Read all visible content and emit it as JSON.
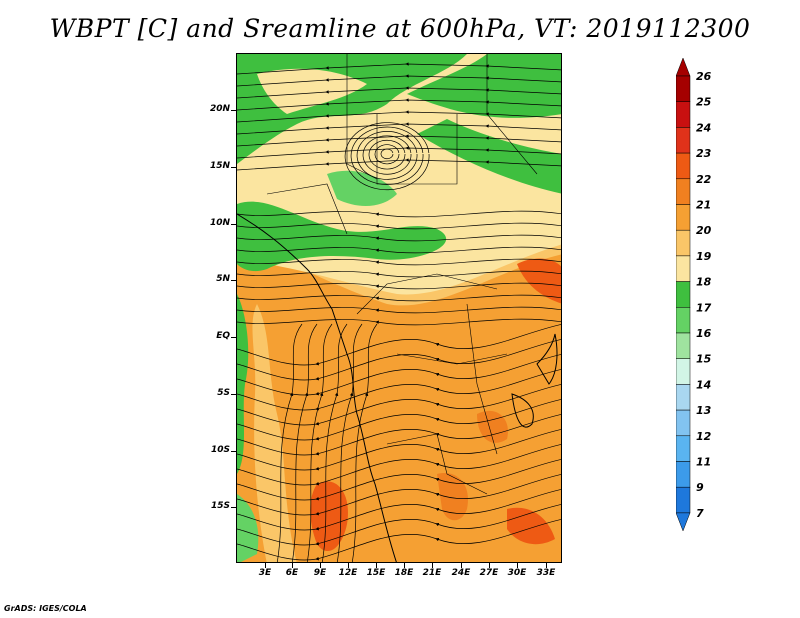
{
  "title": "WBPT [C] and Sreamline at 600hPa, VT: 2019112300",
  "footer": "GrADS: IGES/COLA",
  "map": {
    "lat_labels": [
      "20N",
      "15N",
      "10N",
      "5N",
      "EQ",
      "5S",
      "10S",
      "15S"
    ],
    "lon_labels": [
      "3E",
      "6E",
      "9E",
      "12E",
      "15E",
      "18E",
      "21E",
      "24E",
      "27E",
      "30E",
      "33E"
    ]
  },
  "colorbar": {
    "levels": [
      "26",
      "25",
      "24",
      "23",
      "22",
      "21",
      "20",
      "19",
      "18",
      "17",
      "16",
      "15",
      "14",
      "13",
      "12",
      "11",
      "9",
      "7"
    ],
    "colors": [
      "#a50000",
      "#c81010",
      "#e0321a",
      "#ee5a14",
      "#f08020",
      "#f5a033",
      "#fac668",
      "#fbe5a0",
      "#3fbf3f",
      "#64d264",
      "#9fe39f",
      "#d2f5e6",
      "#a9d7f0",
      "#82c3f0",
      "#5ab4f0",
      "#3c9bea",
      "#1e78dc"
    ],
    "end_colors": {
      "top": "#a50000",
      "bottom": "#1e78dc"
    }
  },
  "chart_data": {
    "type": "heatmap",
    "variable": "WBPT [C]",
    "level": "600hPa",
    "valid_time": "2019112300",
    "lon_ticks": [
      "3E",
      "6E",
      "9E",
      "12E",
      "15E",
      "18E",
      "21E",
      "24E",
      "27E",
      "30E",
      "33E"
    ],
    "lat_ticks": [
      "20N",
      "15N",
      "10N",
      "5N",
      "EQ",
      "5S",
      "10S",
      "15S"
    ],
    "colorbar_levels": [
      7,
      9,
      11,
      12,
      13,
      14,
      15,
      16,
      17,
      18,
      19,
      20,
      21,
      22,
      23,
      24,
      25,
      26
    ],
    "regions": [
      {
        "area": "north (Sahel/Sahara, 10N-22N)",
        "range": "17-19"
      },
      {
        "area": "central (EQ-5N)",
        "range": "19-21"
      },
      {
        "area": "south-central (5S-17S)",
        "range": "20-23"
      },
      {
        "area": "local maxima near 15S,10E; 17S,25E; 17S,32E",
        "range": "22-24"
      }
    ]
  }
}
